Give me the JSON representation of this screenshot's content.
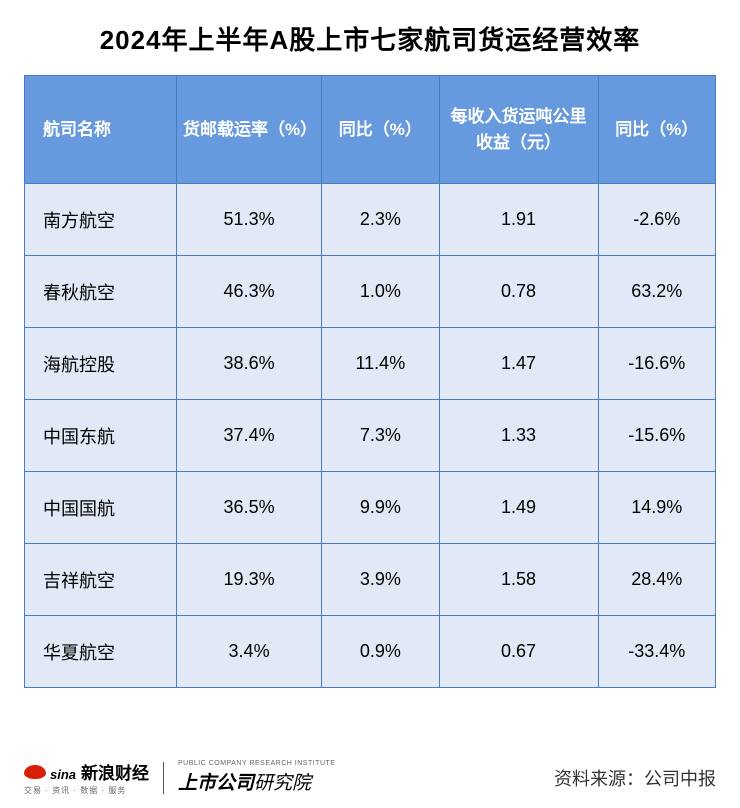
{
  "title": "2024年上半年A股上市七家航司货运经营效率",
  "table": {
    "header_bg": "#6699dd",
    "header_fg": "#ffffff",
    "cell_bg": "#e0e9f5",
    "cell_fg": "#000000",
    "border_color": "#4a7bc0",
    "columns": [
      "航司名称",
      "货邮载运率（%）",
      "同比（%）",
      "每收入货运吨公里收益（元）",
      "同比（%）"
    ],
    "rows": [
      {
        "name": "南方航空",
        "rate": "51.3%",
        "yoy1": "2.3%",
        "income": "1.91",
        "yoy2": "-2.6%"
      },
      {
        "name": "春秋航空",
        "rate": "46.3%",
        "yoy1": "1.0%",
        "income": "0.78",
        "yoy2": "63.2%"
      },
      {
        "name": "海航控股",
        "rate": "38.6%",
        "yoy1": "11.4%",
        "income": "1.47",
        "yoy2": "-16.6%"
      },
      {
        "name": "中国东航",
        "rate": "37.4%",
        "yoy1": "7.3%",
        "income": "1.33",
        "yoy2": "-15.6%"
      },
      {
        "name": "中国国航",
        "rate": "36.5%",
        "yoy1": "9.9%",
        "income": "1.49",
        "yoy2": "14.9%"
      },
      {
        "name": "吉祥航空",
        "rate": "19.3%",
        "yoy1": "3.9%",
        "income": "1.58",
        "yoy2": "28.4%"
      },
      {
        "name": "华夏航空",
        "rate": "3.4%",
        "yoy1": "0.9%",
        "income": "0.67",
        "yoy2": "-33.4%"
      }
    ]
  },
  "footer": {
    "sina_text": "sina",
    "sina_cn": "新浪财经",
    "sina_sub": "交易 · 资讯 · 数据 · 服务",
    "institute_en": "PUBLIC COMPANY RESEARCH INSTITUTE",
    "institute_cn_bold": "上市公司",
    "institute_cn_thin": "研究院",
    "source": "资料来源：公司中报"
  }
}
